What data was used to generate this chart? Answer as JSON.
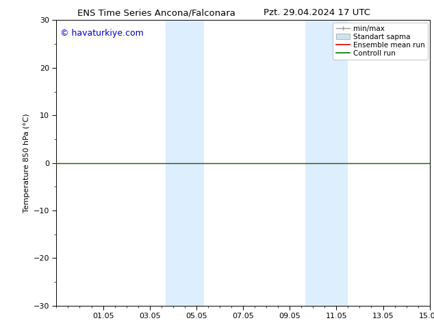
{
  "title_left": "ENS Time Series Ancona/Falconara",
  "title_right": "Pzt. 29.04.2024 17 UTC",
  "ylabel": "Temperature 850 hPa (°C)",
  "watermark": "© havaturkiye.com",
  "watermark_color": "#0000cc",
  "ylim": [
    -30,
    30
  ],
  "yticks": [
    -30,
    -20,
    -10,
    0,
    10,
    20,
    30
  ],
  "xtick_labels": [
    "01.05",
    "03.05",
    "05.05",
    "07.05",
    "09.05",
    "11.05",
    "13.05",
    "15.05"
  ],
  "xtick_positions": [
    2,
    4,
    6,
    8,
    10,
    12,
    14,
    16
  ],
  "background_color": "#ffffff",
  "plot_bg_color": "#ffffff",
  "shaded_regions": [
    {
      "xmin": 4.67,
      "xmax": 6.33,
      "color": "#ddeeff"
    },
    {
      "xmin": 10.67,
      "xmax": 12.5,
      "color": "#ddeeff"
    }
  ],
  "control_run_color": "#007700",
  "ensemble_mean_color": "#dd0000",
  "minmax_color": "#999999",
  "std_color": "#cce4f0",
  "title_fontsize": 9.5,
  "axis_label_fontsize": 8,
  "tick_fontsize": 8,
  "watermark_fontsize": 9,
  "legend_fontsize": 7.5
}
